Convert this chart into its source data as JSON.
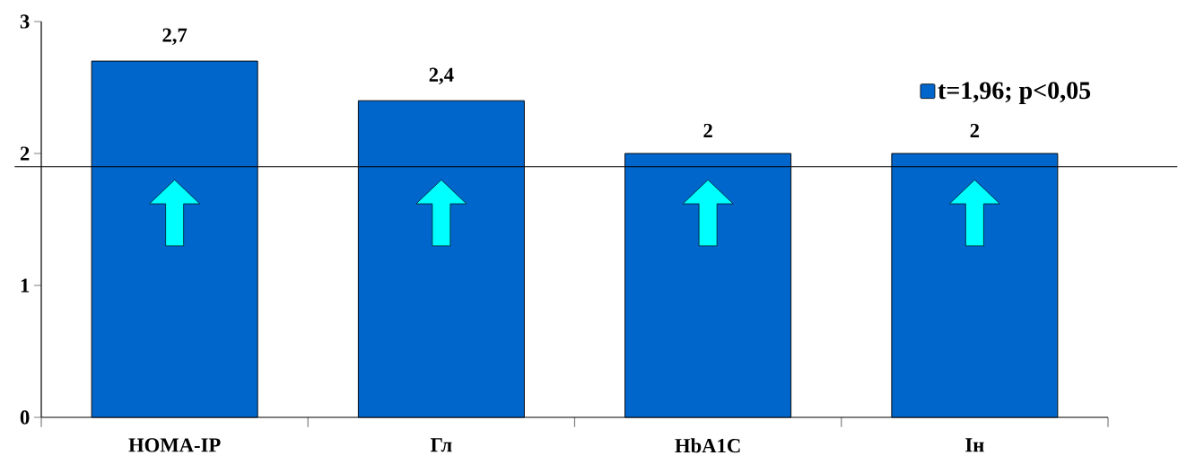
{
  "chart_data": {
    "type": "bar",
    "categories": [
      "HOMA-IP",
      "Гл",
      "HbA1C",
      "Iн"
    ],
    "series": [
      {
        "name": "t=1,96; p<0,05",
        "color": "#0066cc",
        "values": [
          2.7,
          2.4,
          2,
          2
        ],
        "value_labels": [
          "2,7",
          "2,4",
          "2",
          "2"
        ]
      }
    ],
    "ylim": [
      0,
      3
    ],
    "yticks": [
      0,
      1,
      2,
      3
    ],
    "ref_lines": [
      {
        "axis": "y",
        "value": 1.9
      }
    ],
    "legend": "top right"
  }
}
